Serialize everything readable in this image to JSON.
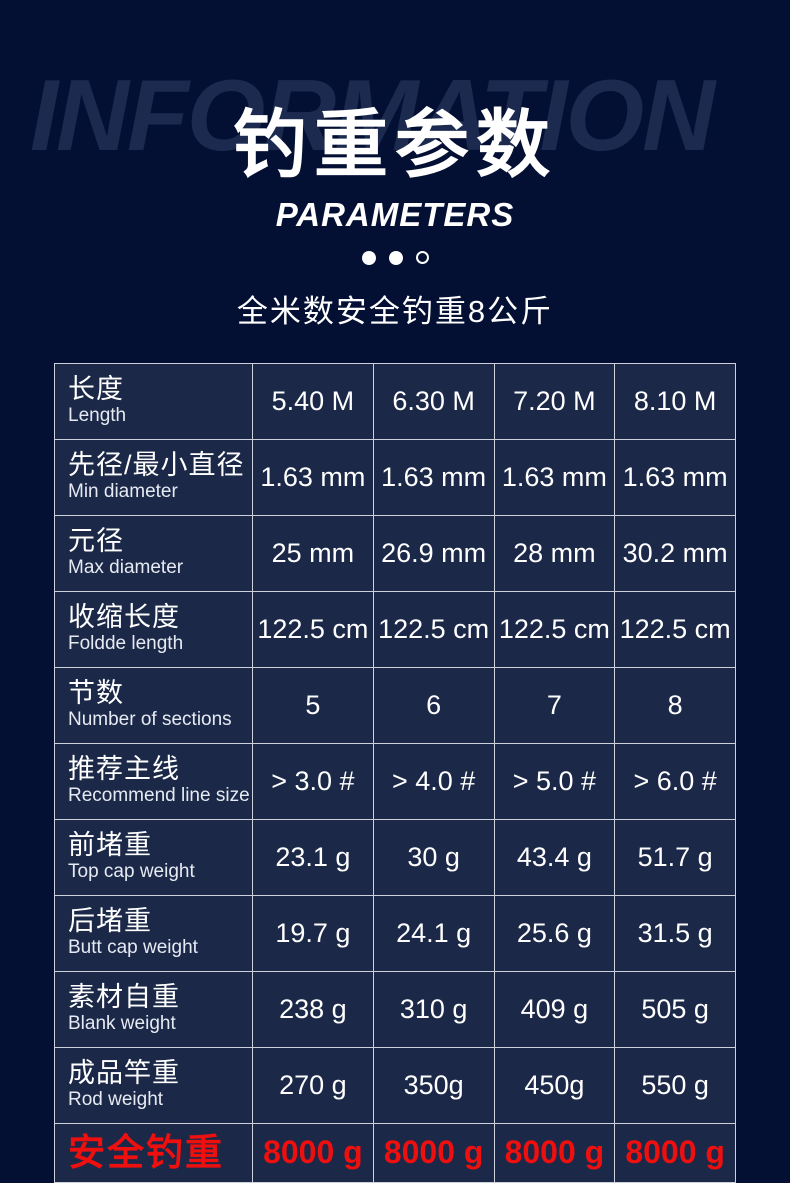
{
  "page": {
    "background": "#041033",
    "cell_background": "#1b2848",
    "grid_line_color": "#ccd1da",
    "highlight_color": "#ee0f0f"
  },
  "header": {
    "watermark": "INFORMATION",
    "title": "钓重参数",
    "subtitle_en": "PARAMETERS",
    "dots": [
      "filled",
      "filled",
      "outline"
    ],
    "tagline": "全米数安全钓重8公斤"
  },
  "chart_data": {
    "type": "table",
    "title": "钓重参数",
    "subtitle": "PARAMETERS",
    "note": "全米数安全钓重8公斤",
    "rows": [
      {
        "zh": "长度",
        "en": "Length",
        "values": [
          "5.40 M",
          "6.30 M",
          "7.20 M",
          "8.10 M"
        ],
        "highlight": false
      },
      {
        "zh": "先径/最小直径",
        "en": "Min diameter",
        "values": [
          "1.63 mm",
          "1.63 mm",
          "1.63 mm",
          "1.63 mm"
        ],
        "highlight": false
      },
      {
        "zh": "元径",
        "en": "Max diameter",
        "values": [
          "25 mm",
          "26.9 mm",
          "28 mm",
          "30.2 mm"
        ],
        "highlight": false
      },
      {
        "zh": "收缩长度",
        "en": "Foldde length",
        "values": [
          "122.5 cm",
          "122.5 cm",
          "122.5 cm",
          "122.5 cm"
        ],
        "highlight": false
      },
      {
        "zh": "节数",
        "en": "Number of sections",
        "values": [
          "5",
          "6",
          "7",
          "8"
        ],
        "highlight": false
      },
      {
        "zh": "推荐主线",
        "en": "Recommend line size",
        "values": [
          "> 3.0 #",
          "> 4.0 #",
          "> 5.0 #",
          "> 6.0 #"
        ],
        "highlight": false
      },
      {
        "zh": "前堵重",
        "en": "Top cap weight",
        "values": [
          "23.1 g",
          "30 g",
          "43.4 g",
          "51.7 g"
        ],
        "highlight": false
      },
      {
        "zh": "后堵重",
        "en": "Butt cap weight",
        "values": [
          "19.7 g",
          "24.1 g",
          "25.6 g",
          "31.5 g"
        ],
        "highlight": false
      },
      {
        "zh": "素材自重",
        "en": "Blank weight",
        "values": [
          "238 g",
          "310 g",
          "409 g",
          "505 g"
        ],
        "highlight": false
      },
      {
        "zh": "成品竿重",
        "en": "Rod weight",
        "values": [
          "270 g",
          "350g",
          "450g",
          "550 g"
        ],
        "highlight": false
      },
      {
        "zh": "安全钓重",
        "en": "",
        "values": [
          "8000 g",
          "8000 g",
          "8000 g",
          "8000 g"
        ],
        "highlight": true
      }
    ]
  }
}
